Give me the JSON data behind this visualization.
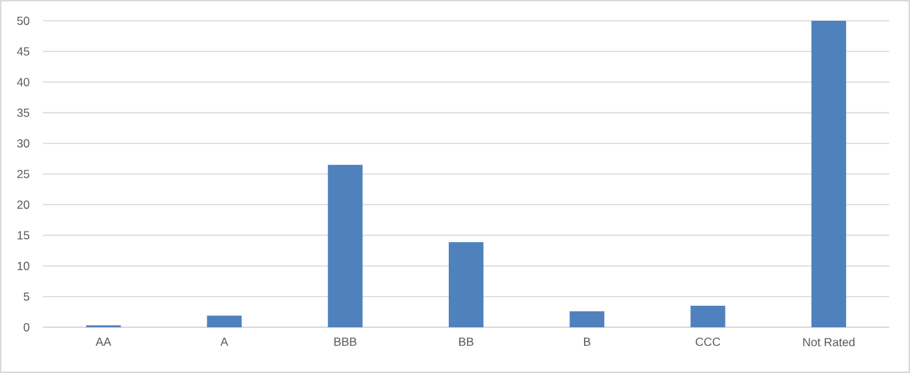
{
  "chart_data": {
    "type": "bar",
    "categories": [
      "AA",
      "A",
      "BBB",
      "BB",
      "B",
      "CCC",
      "Not Rated"
    ],
    "values": [
      0.3,
      1.9,
      26.5,
      13.9,
      2.6,
      3.5,
      50.0
    ],
    "color": "#4f81bd",
    "ylim": [
      0,
      50
    ],
    "yticks": [
      0,
      5,
      10,
      15,
      20,
      25,
      30,
      35,
      40,
      45,
      50
    ],
    "grid": "y"
  }
}
